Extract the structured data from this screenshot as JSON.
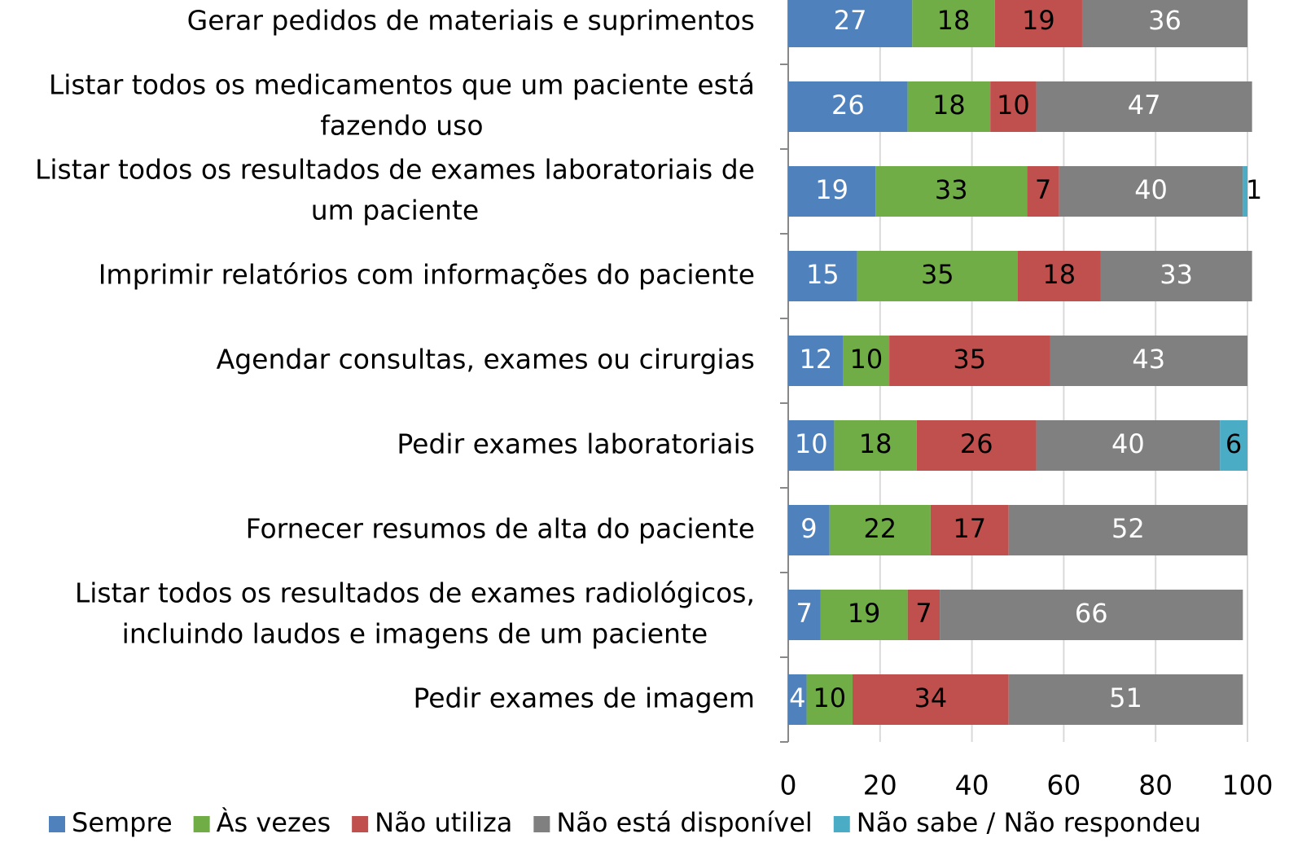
{
  "chart_data": {
    "type": "stacked_bar_horizontal",
    "categories": [
      "Gerar pedidos de materiais e suprimentos",
      "Listar todos os medicamentos que um paciente está fazendo uso",
      "Listar todos os resultados de exames laboratoriais de um paciente",
      "Imprimir relatórios com informações do paciente",
      "Agendar consultas, exames ou cirurgias",
      "Pedir exames laboratoriais",
      "Fornecer resumos de alta do paciente",
      "Listar todos os resultados de exames radiológicos, incluindo laudos e imagens de um paciente",
      "Pedir exames de imagem"
    ],
    "series": [
      {
        "name": "Sempre",
        "color": "#4f81bd",
        "values": [
          27,
          26,
          19,
          15,
          12,
          10,
          9,
          7,
          4
        ]
      },
      {
        "name": "Às vezes",
        "color": "#70ad47",
        "values": [
          18,
          18,
          33,
          35,
          10,
          18,
          22,
          19,
          10
        ]
      },
      {
        "name": "Não utiliza",
        "color": "#c0504d",
        "values": [
          19,
          10,
          7,
          18,
          35,
          26,
          17,
          7,
          34
        ]
      },
      {
        "name": "Não está disponível",
        "color": "#808080",
        "values": [
          36,
          47,
          40,
          33,
          43,
          40,
          52,
          66,
          51
        ]
      },
      {
        "name": "Não sabe / Não respondeu",
        "color": "#4bacc6",
        "values": [
          null,
          null,
          1,
          null,
          null,
          6,
          null,
          null,
          null
        ]
      }
    ],
    "xlim": [
      0,
      100
    ],
    "xticks": [
      0,
      20,
      40,
      60,
      80,
      100
    ],
    "grid": true,
    "legend": "bottom"
  }
}
